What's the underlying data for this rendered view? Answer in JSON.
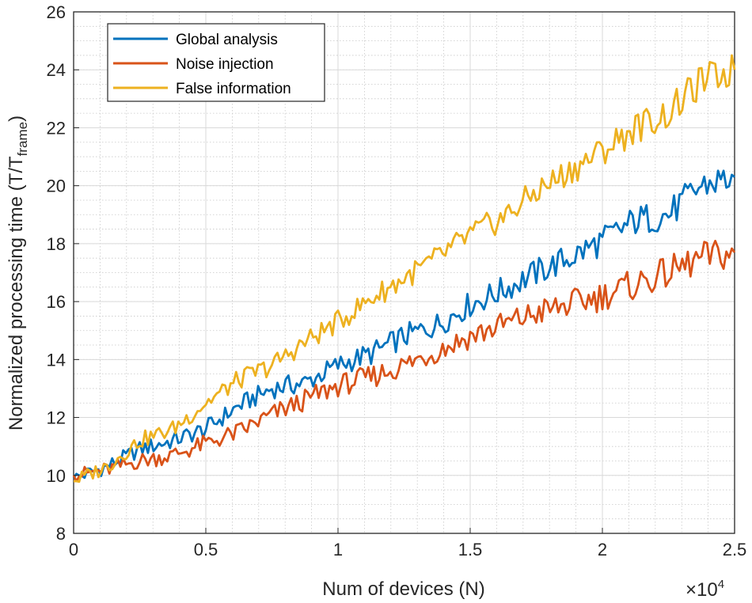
{
  "chart_data": {
    "type": "line",
    "title": "",
    "xlabel": "Num of devices (N)",
    "ylabel": "Normalized processing time (T/T",
    "ylabel_sub": "frame",
    "ylabel_close": ")",
    "x_exponent_base": "×10",
    "x_exponent_power": "4",
    "xlim": [
      0,
      2.5
    ],
    "ylim": [
      8,
      26
    ],
    "x_ticks": [
      0,
      0.5,
      1,
      1.5,
      2,
      2.5
    ],
    "x_tick_labels": [
      "0",
      "0.5",
      "1",
      "1.5",
      "2",
      "2.5"
    ],
    "y_ticks": [
      8,
      10,
      12,
      14,
      16,
      18,
      20,
      22,
      24,
      26
    ],
    "y_tick_labels": [
      "8",
      "10",
      "12",
      "14",
      "16",
      "18",
      "20",
      "22",
      "24",
      "26"
    ],
    "grid": "major and minor",
    "legend_position": "top-left",
    "x": [
      0,
      0.125,
      0.25,
      0.375,
      0.5,
      0.625,
      0.75,
      0.875,
      1.0,
      1.125,
      1.25,
      1.375,
      1.5,
      1.625,
      1.75,
      1.875,
      2.0,
      2.125,
      2.25,
      2.375,
      2.5
    ],
    "series": [
      {
        "name": "Global analysis",
        "color": "#0072BD",
        "values": [
          9.9,
          10.3,
          10.9,
          11.2,
          11.6,
          12.4,
          13.0,
          13.2,
          13.8,
          14.2,
          14.8,
          15.2,
          15.9,
          16.4,
          17.0,
          17.5,
          18.1,
          18.8,
          19.0,
          20.0,
          20.3
        ]
      },
      {
        "name": "Noise injection",
        "color": "#D95319",
        "values": [
          10.0,
          10.2,
          10.5,
          10.7,
          11.1,
          11.5,
          12.1,
          12.6,
          13.1,
          13.4,
          13.8,
          14.3,
          14.8,
          15.2,
          15.6,
          15.9,
          16.2,
          16.6,
          17.0,
          17.5,
          17.7
        ]
      },
      {
        "name": "False information",
        "color": "#EDB120",
        "values": [
          9.8,
          10.3,
          11.2,
          11.6,
          12.5,
          13.3,
          13.8,
          14.6,
          15.3,
          16.1,
          16.8,
          17.5,
          18.3,
          18.9,
          19.8,
          20.5,
          21.2,
          22.0,
          22.5,
          23.6,
          24.0
        ]
      }
    ]
  }
}
